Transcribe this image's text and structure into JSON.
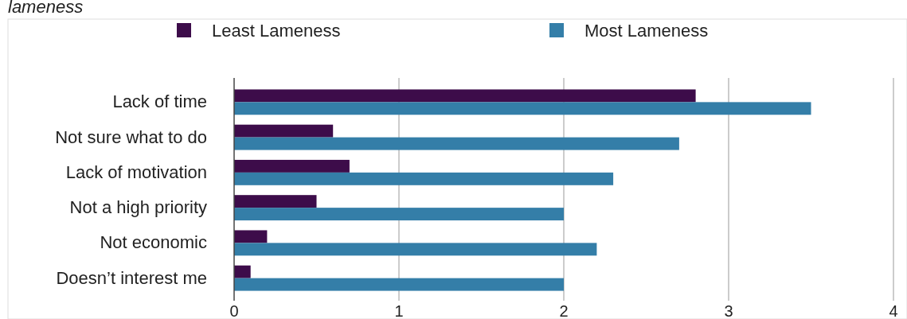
{
  "chart_data": {
    "type": "bar",
    "orientation": "horizontal",
    "title": "lameness",
    "categories": [
      "Lack of time",
      "Not sure what to do",
      "Lack of motivation",
      "Not a high priority",
      "Not economic",
      "Doesn’t interest me"
    ],
    "series": [
      {
        "name": "Least Lameness",
        "color": "#3d0c4a",
        "values": [
          2.8,
          0.6,
          0.7,
          0.5,
          0.2,
          0.1
        ]
      },
      {
        "name": "Most Lameness",
        "color": "#347ea8",
        "values": [
          3.5,
          2.7,
          2.3,
          2.0,
          2.2,
          2.0
        ]
      }
    ],
    "xlim": [
      0,
      4
    ],
    "xticks": [
      0,
      1,
      2,
      3,
      4
    ],
    "grid": "x",
    "legend": "top"
  }
}
